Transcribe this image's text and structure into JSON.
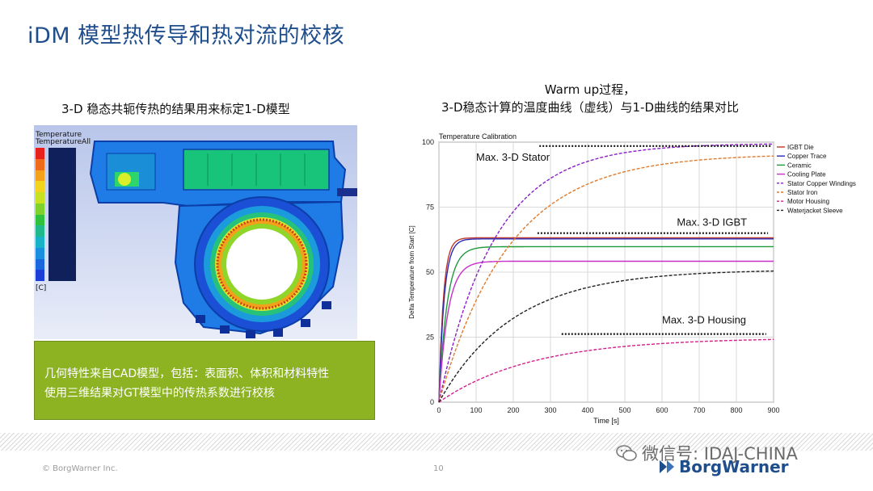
{
  "slide": {
    "title": "iDM 模型热传导和热对流的校核",
    "left_subtitle": "3-D 稳态共轭传热的结果用来标定1-D模型",
    "right_subtitle_line1": "Warm up过程，",
    "right_subtitle_line2": "3-D稳态计算的温度曲线（虚线）与1-D曲线的结果对比",
    "green_box_line1": "几何特性来自CAD模型，包括：表面积、体积和材料特性",
    "green_box_line2": "使用三维结果对GT模型中的传热系数进行校核",
    "footer_copyright": "© BorgWarner Inc.",
    "page_number": "10",
    "wechat_text": "微信号: IDAJ-CHINA",
    "brand_text": "BorgWarner"
  },
  "cfd_legend": {
    "title1": "Temperature",
    "title2": "TemperatureAll",
    "unit": "[C]",
    "colors": [
      "#e8211c",
      "#f06a1a",
      "#f4a21a",
      "#f3d41c",
      "#c9e21f",
      "#7fd22c",
      "#2fc23d",
      "#1fb98b",
      "#18b3c8",
      "#1a8fe0",
      "#1a66de",
      "#1b3fd6"
    ]
  },
  "chart_data": {
    "type": "line",
    "title": "Temperature Calibration",
    "xlabel": "Time [s]",
    "ylabel": "Delta Temperature from Start [C]",
    "xlim": [
      0,
      900
    ],
    "ylim": [
      0,
      100
    ],
    "xticks": [
      0,
      100,
      200,
      300,
      400,
      500,
      600,
      700,
      800,
      900
    ],
    "yticks": [
      0,
      25,
      50,
      75,
      100
    ],
    "legend_position": "top-right",
    "series": [
      {
        "name": "IGBT Die",
        "color": "#c0392b",
        "dash": false,
        "final": 63.2,
        "tau": 12
      },
      {
        "name": "Copper Trace",
        "color": "#2a2ab8",
        "dash": false,
        "final": 62.8,
        "tau": 14
      },
      {
        "name": "Ceramic",
        "color": "#1f9a3a",
        "dash": false,
        "final": 59.8,
        "tau": 22
      },
      {
        "name": "Cooling Plate",
        "color": "#c72fc7",
        "dash": false,
        "final": 54.2,
        "tau": 24
      },
      {
        "name": "Stator Copper Windings",
        "color": "#8a1fc7",
        "dash": true,
        "final": 99.5,
        "tau": 150
      },
      {
        "name": "Stator Iron",
        "color": "#e07a2a",
        "dash": true,
        "final": 95.5,
        "tau": 190
      },
      {
        "name": "Motor Housing",
        "color": "#d21f8a",
        "dash": true,
        "final": 24.8,
        "tau": 250
      },
      {
        "name": "Waterjacket Sleeve",
        "color": "#222222",
        "dash": true,
        "final": 51.0,
        "tau": 200
      }
    ],
    "reference_lines": [
      {
        "label": "Max. 3-D Stator",
        "y": 98.5,
        "x_start": 270,
        "x_end": 895
      },
      {
        "label": "Max. 3-D IGBT",
        "y": 65.0,
        "x_start": 265,
        "x_end": 885
      },
      {
        "label": "Max. 3-D Housing",
        "y": 26.2,
        "x_start": 330,
        "x_end": 880
      }
    ]
  }
}
